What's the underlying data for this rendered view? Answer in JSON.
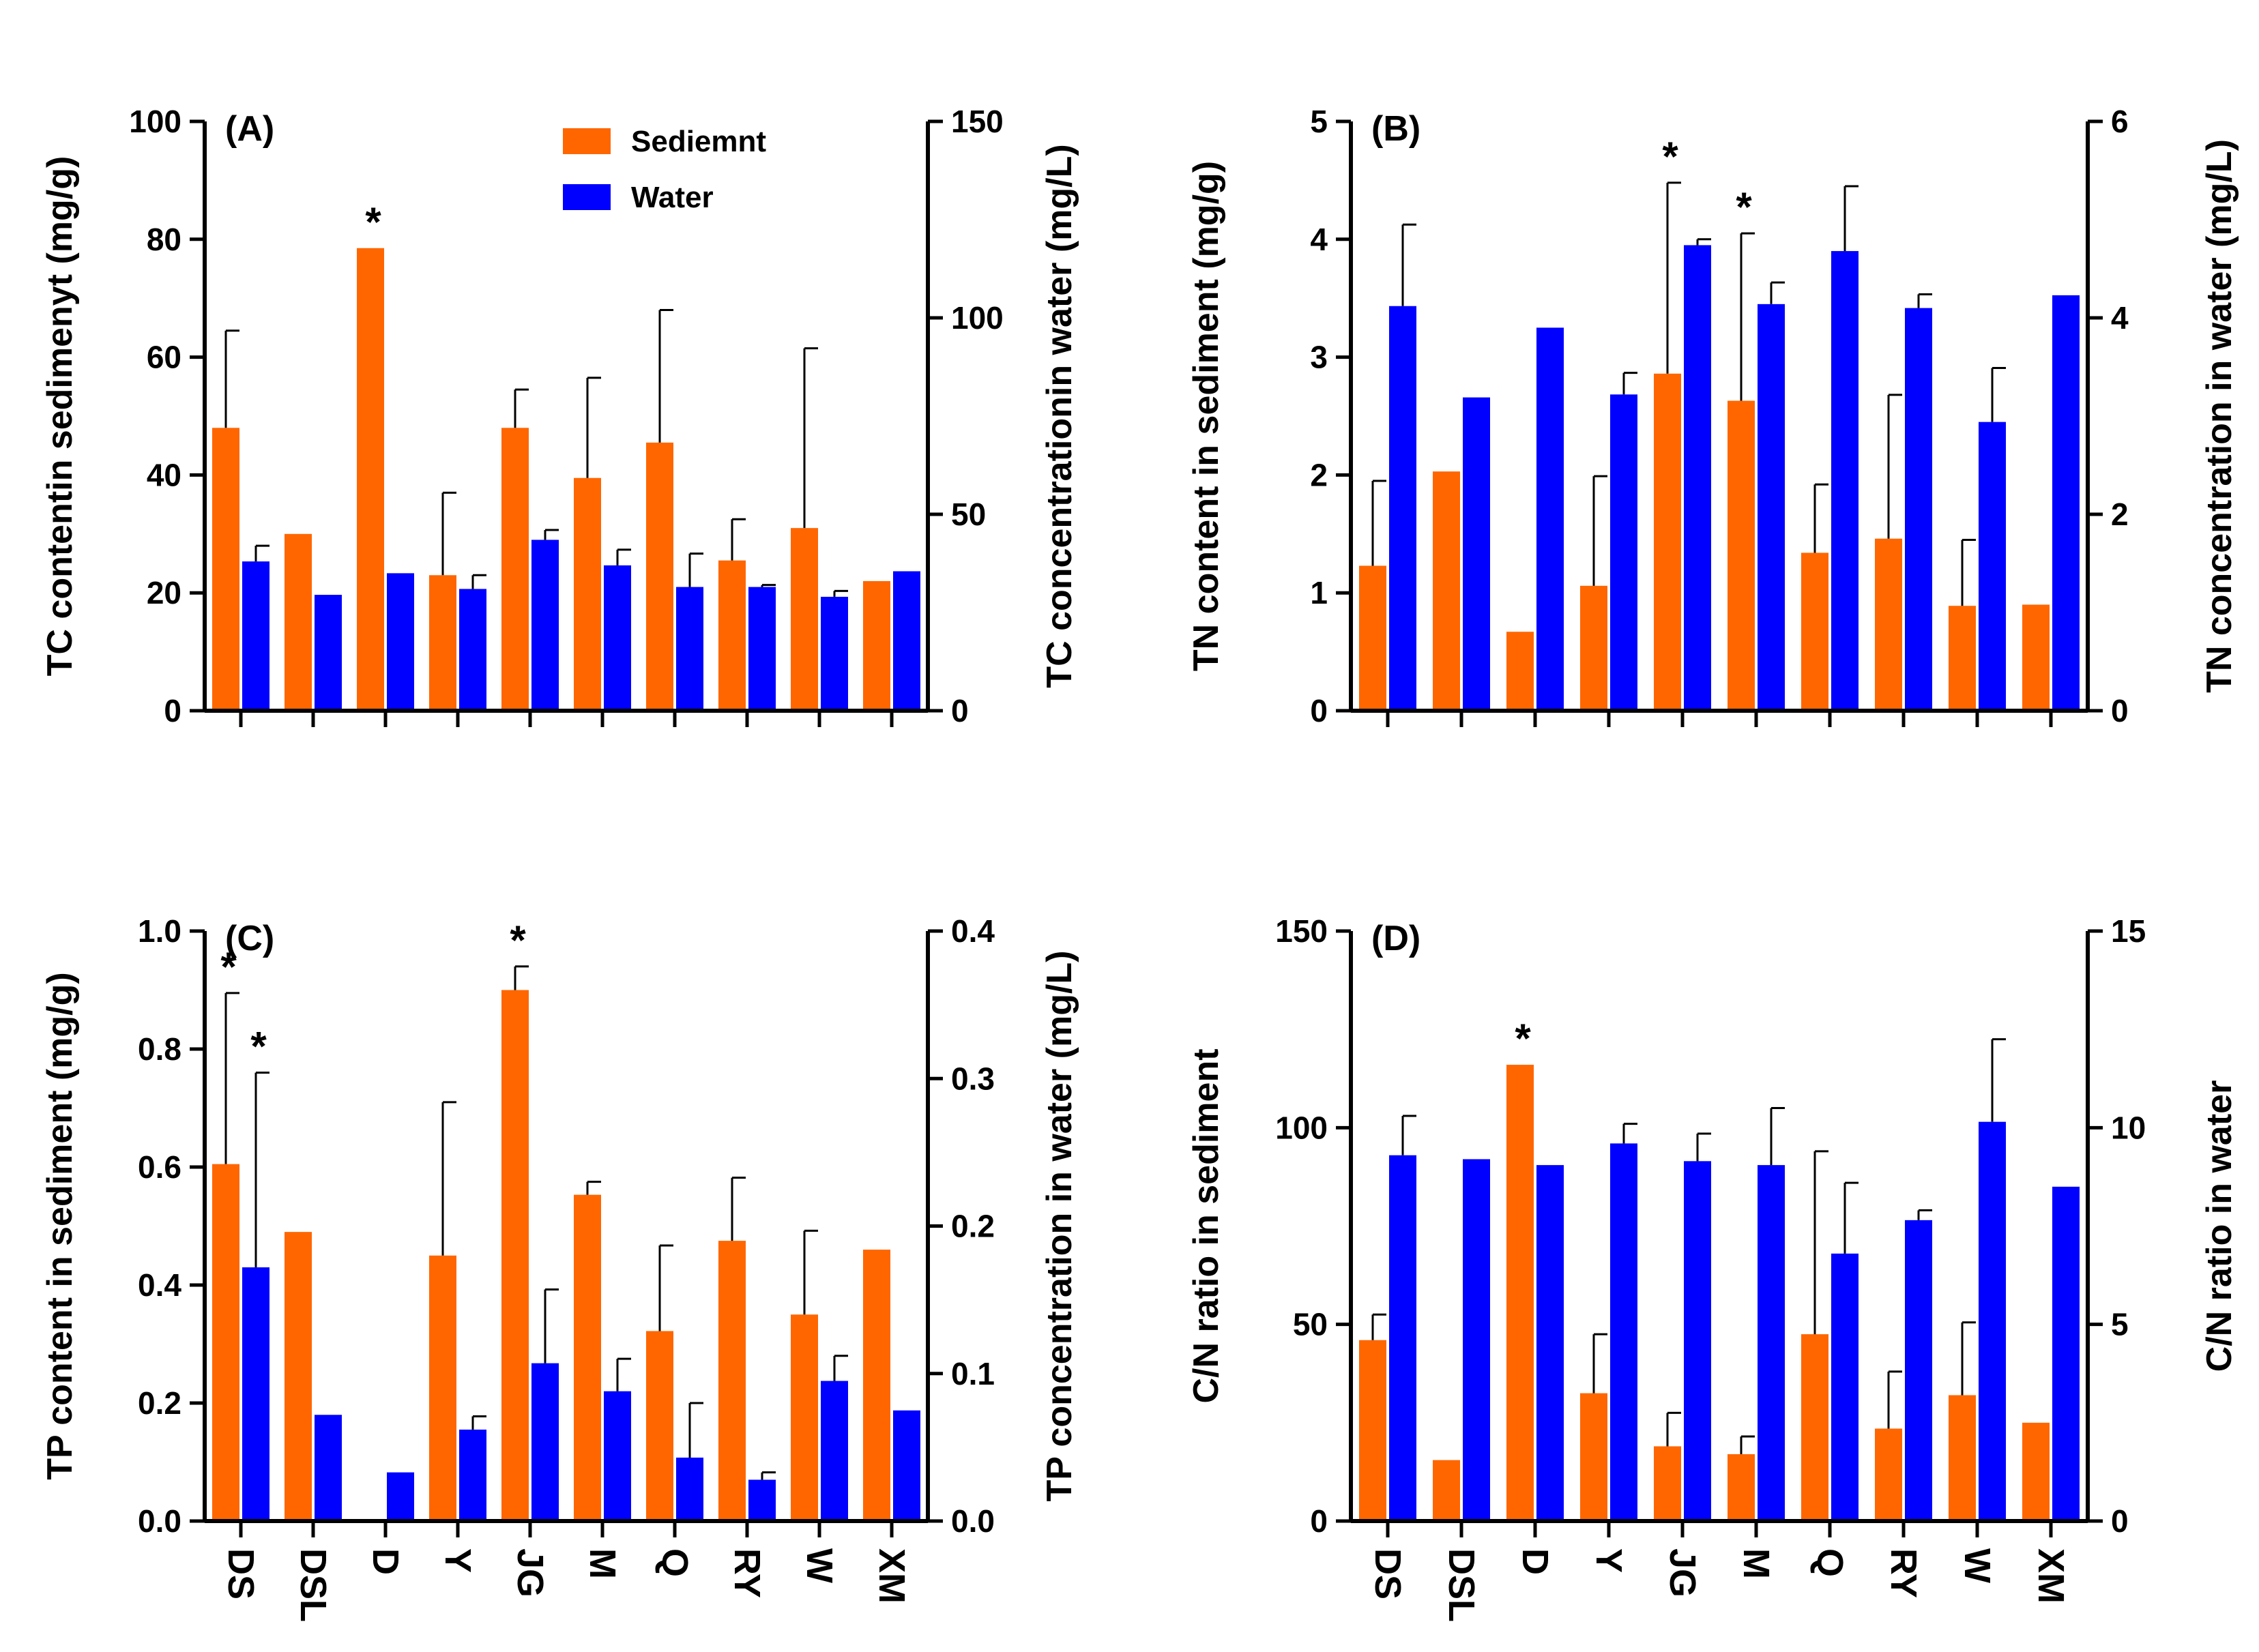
{
  "colors": {
    "sediment": "#ff6600",
    "water": "#0000ff",
    "axis": "#000000"
  },
  "legend": {
    "sediment": "Sediemnt",
    "water": "Water"
  },
  "chart_data": [
    {
      "panel": "(A)",
      "type": "bar",
      "categories": [
        "DS",
        "DSL",
        "D",
        "Y",
        "JG",
        "M",
        "Q",
        "RY",
        "W",
        "XM"
      ],
      "show_category_labels": false,
      "show_legend": true,
      "left_axis": {
        "label": "TC contentin sedimenyt (mg/g)",
        "ylim": [
          0,
          100
        ],
        "ticks": [
          "0",
          "20",
          "40",
          "60",
          "80",
          "100"
        ]
      },
      "right_axis": {
        "label": "TC concentrationin water (mg/L)",
        "ylim": [
          0,
          150
        ],
        "ticks": [
          "0",
          "50",
          "100",
          "150"
        ]
      },
      "series": [
        {
          "name": "Sediemnt",
          "axis": "left",
          "values": [
            48,
            30,
            78.5,
            23,
            48,
            39.5,
            45.5,
            25.5,
            31,
            22
          ],
          "errors": [
            16.5,
            0,
            0,
            14,
            6.5,
            17,
            22.5,
            7,
            30.5,
            0
          ]
        },
        {
          "name": "Water",
          "axis": "right",
          "values": [
            38,
            29.5,
            35,
            31,
            43.5,
            37,
            31.5,
            31.5,
            29,
            35.5
          ],
          "errors": [
            4,
            0,
            0,
            3.5,
            2.5,
            4,
            8.5,
            0.5,
            1.5,
            0
          ]
        }
      ],
      "significance": [
        {
          "index": 2,
          "series": 0,
          "label": "*"
        }
      ]
    },
    {
      "panel": "(B)",
      "type": "bar",
      "categories": [
        "DS",
        "DSL",
        "D",
        "Y",
        "JG",
        "M",
        "Q",
        "RY",
        "W",
        "XM"
      ],
      "show_category_labels": false,
      "show_legend": false,
      "left_axis": {
        "label": "TN content in sediment (mg/g)",
        "ylim": [
          0,
          5
        ],
        "ticks": [
          "0",
          "1",
          "2",
          "3",
          "4",
          "5"
        ]
      },
      "right_axis": {
        "label": "TN concentration in water (mg/L)",
        "ylim": [
          0,
          6
        ],
        "ticks": [
          "0",
          "2",
          "4",
          "6"
        ]
      },
      "series": [
        {
          "name": "Sediemnt",
          "axis": "left",
          "values": [
            1.23,
            2.03,
            0.67,
            1.06,
            2.86,
            2.63,
            1.34,
            1.46,
            0.89,
            0.9
          ],
          "errors": [
            0.72,
            0,
            0,
            0.93,
            1.62,
            1.42,
            0.58,
            1.22,
            0.56,
            0
          ]
        },
        {
          "name": "Water",
          "axis": "right",
          "values": [
            4.12,
            3.19,
            3.9,
            3.22,
            4.74,
            4.14,
            4.68,
            4.1,
            2.94,
            4.23
          ],
          "errors": [
            0.83,
            0,
            0,
            0.22,
            0.06,
            0.22,
            0.66,
            0.14,
            0.55,
            0
          ]
        }
      ],
      "significance": [
        {
          "index": 4,
          "series": 0,
          "label": "*"
        },
        {
          "index": 5,
          "series": 0,
          "label": "*"
        }
      ]
    },
    {
      "panel": "(C)",
      "type": "bar",
      "categories": [
        "DS",
        "DSL",
        "D",
        "Y",
        "JG",
        "M",
        "Q",
        "RY",
        "W",
        "XM"
      ],
      "show_category_labels": true,
      "show_legend": false,
      "left_axis": {
        "label": "TP content in sediment (mg/g)",
        "ylim": [
          0,
          1
        ],
        "ticks": [
          "0.0",
          "0.2",
          "0.4",
          "0.6",
          "0.8",
          "1.0"
        ]
      },
      "right_axis": {
        "label": "TP concentration in water (mg/L)",
        "ylim": [
          0,
          0.4
        ],
        "ticks": [
          "0.0",
          "0.1",
          "0.2",
          "0.3",
          "0.4"
        ]
      },
      "series": [
        {
          "name": "Sediemnt",
          "axis": "left",
          "values": [
            0.605,
            0.49,
            0,
            0.45,
            0.9,
            0.553,
            0.322,
            0.475,
            0.35,
            0.46
          ],
          "errors": [
            0.29,
            0,
            0,
            0.26,
            0.04,
            0.022,
            0.145,
            0.107,
            0.142,
            0
          ]
        },
        {
          "name": "Water",
          "axis": "right",
          "values": [
            0.172,
            0.072,
            0.033,
            0.062,
            0.107,
            0.088,
            0.043,
            0.028,
            0.095,
            0.075
          ],
          "errors": [
            0.132,
            0,
            0,
            0.009,
            0.05,
            0.022,
            0.037,
            0.005,
            0.017,
            0
          ]
        }
      ],
      "significance": [
        {
          "index": 0,
          "series": 0,
          "label": "*"
        },
        {
          "index": 0,
          "series": 1,
          "label": "*"
        },
        {
          "index": 4,
          "series": 0,
          "label": "*"
        }
      ]
    },
    {
      "panel": "(D)",
      "type": "bar",
      "categories": [
        "DS",
        "DSL",
        "D",
        "Y",
        "JG",
        "M",
        "Q",
        "RY",
        "W",
        "XM"
      ],
      "show_category_labels": true,
      "show_legend": false,
      "left_axis": {
        "label": "C/N ratio in sediment",
        "ylim": [
          0,
          150
        ],
        "ticks": [
          "0",
          "50",
          "100",
          "150"
        ]
      },
      "right_axis": {
        "label": "C/N ratio in water",
        "ylim": [
          0,
          15
        ],
        "ticks": [
          "0",
          "5",
          "10",
          "15"
        ]
      },
      "series": [
        {
          "name": "Sediemnt",
          "axis": "left",
          "values": [
            46,
            15.5,
            116,
            32.5,
            19,
            17,
            47.5,
            23.5,
            32,
            25
          ],
          "errors": [
            6.5,
            0,
            0,
            15,
            8.5,
            4.5,
            46.5,
            14.5,
            18.5,
            0
          ]
        },
        {
          "name": "Water",
          "axis": "right",
          "values": [
            9.3,
            9.2,
            9.05,
            9.6,
            9.15,
            9.05,
            6.8,
            7.65,
            10.15,
            8.5
          ],
          "errors": [
            1,
            0,
            0,
            0.5,
            0.7,
            1.45,
            1.8,
            0.25,
            2.1,
            0
          ]
        }
      ],
      "significance": [
        {
          "index": 2,
          "series": 0,
          "label": "*"
        }
      ]
    }
  ]
}
